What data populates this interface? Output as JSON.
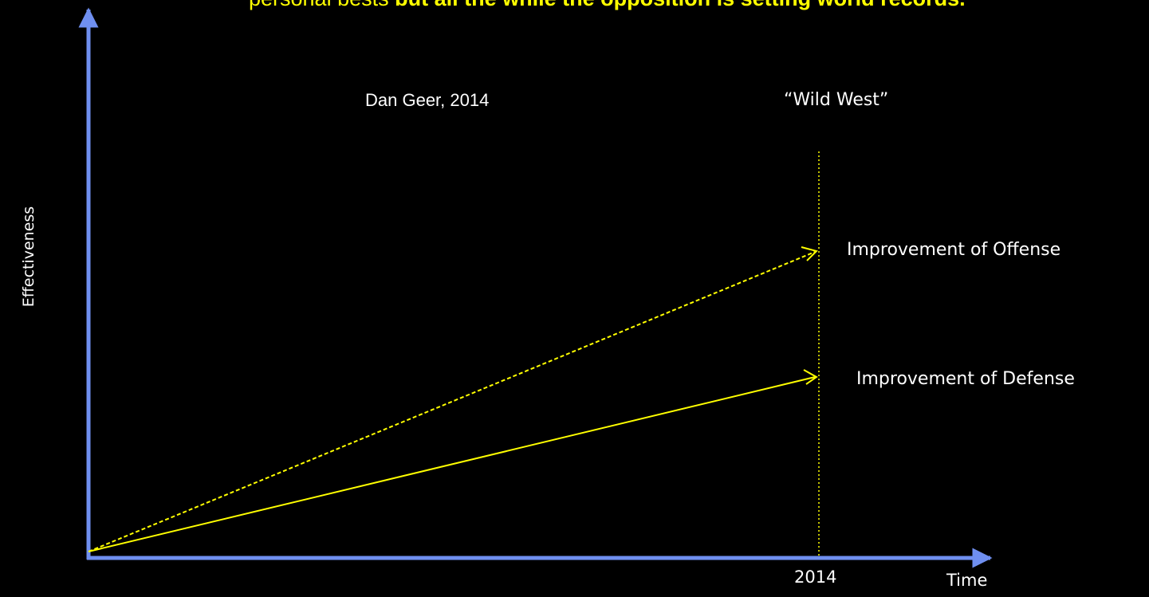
{
  "quote": {
    "line1_visible_partial": "...personal bests",
    "lead": "personal bests ",
    "emphasis": "but all the while the opposition is setting world records.",
    "attribution": "Dan Geer, 2014"
  },
  "era_label": "“Wild West”",
  "axes": {
    "y_label": "Effectiveness",
    "x_label": "Time",
    "year_marker": "2014"
  },
  "series": {
    "offense": "Improvement of Offense",
    "defense": "Improvement of Defense"
  },
  "colors": {
    "background": "#000000",
    "axis": "#6f8ff0",
    "line": "#ffff00",
    "quote_text": "#ffff00",
    "label_text": "#ffffff"
  }
}
